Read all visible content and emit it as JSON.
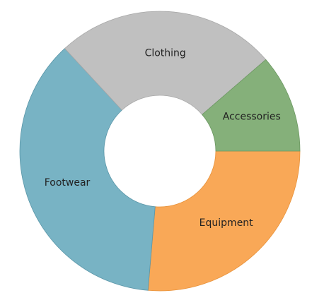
{
  "chart_data": {
    "type": "pie",
    "donut": true,
    "title": "",
    "slices": [
      {
        "label": "Equipment",
        "value": 25.3,
        "color": "#F9A857",
        "stroke": "#E8923A"
      },
      {
        "label": "Footwear",
        "value": 35.3,
        "color": "#78B3C4",
        "stroke": "#5A96A8"
      },
      {
        "label": "Clothing",
        "value": 24.5,
        "color": "#C0C0C0",
        "stroke": "#A8A8A8"
      },
      {
        "label": "Accessories",
        "value": 10.9,
        "color": "#85B07A",
        "stroke": "#6C9862"
      }
    ],
    "legend": "none",
    "start": "right, clockwise"
  }
}
